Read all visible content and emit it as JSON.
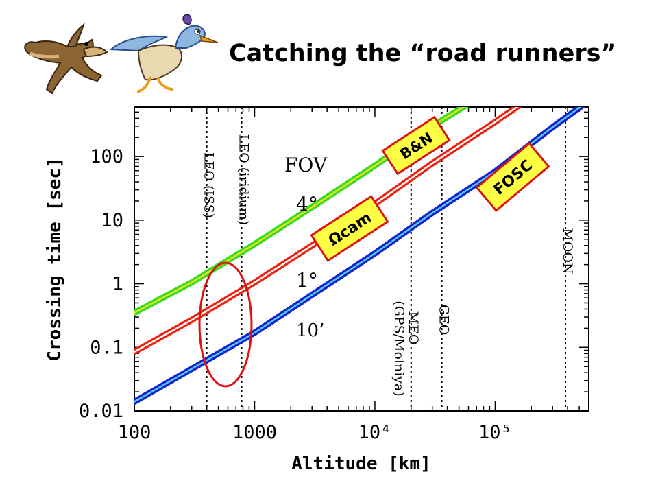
{
  "slide": {
    "title": "Catching the “road runners”"
  },
  "chart_data": {
    "type": "line",
    "xlabel": "Altitude [km]",
    "ylabel": "Crossing time [sec]",
    "xscale": "log",
    "yscale": "log",
    "xlim": [
      100,
      600000
    ],
    "ylim": [
      0.01,
      600
    ],
    "x_ticks": [
      {
        "value": 100,
        "label": "100"
      },
      {
        "value": 1000,
        "label": "1000"
      },
      {
        "value": 10000,
        "label": "10⁴"
      },
      {
        "value": 100000,
        "label": "10⁵"
      }
    ],
    "y_ticks": [
      {
        "value": 0.01,
        "label": "0.01"
      },
      {
        "value": 0.1,
        "label": "0.1"
      },
      {
        "value": 1,
        "label": "1"
      },
      {
        "value": 10,
        "label": "10"
      },
      {
        "value": 100,
        "label": "100"
      }
    ],
    "grid": false,
    "legend_title": "FOV",
    "series": [
      {
        "name": "4°",
        "color": "#33dd22",
        "core_color": "#f0e020",
        "x": [
          100,
          300,
          1000,
          3000,
          10000,
          30000,
          62000
        ],
        "y": [
          0.35,
          1.05,
          4.2,
          16,
          72,
          300,
          700
        ]
      },
      {
        "name": "1°",
        "color": "#ee2211",
        "core_color": "#ffffff",
        "x": [
          100,
          300,
          1000,
          3000,
          10000,
          30000,
          100000,
          180000
        ],
        "y": [
          0.085,
          0.27,
          1.05,
          4,
          18,
          78,
          350,
          750
        ]
      },
      {
        "name": "10’",
        "color": "#1122cc",
        "core_color": "#55ccee",
        "x": [
          100,
          300,
          1000,
          3000,
          10000,
          30000,
          100000,
          300000,
          570000
        ],
        "y": [
          0.014,
          0.046,
          0.17,
          0.67,
          3,
          13,
          58,
          290,
          700
        ]
      }
    ],
    "reference_lines": [
      {
        "x": 400,
        "label": "LEO (ISS)"
      },
      {
        "x": 780,
        "label": "LEO (iridium)"
      },
      {
        "x": 20000,
        "label": "MEO",
        "label2": "(GPS/Molniya)"
      },
      {
        "x": 36000,
        "label": "GEO"
      },
      {
        "x": 384000,
        "label": "MOON"
      }
    ],
    "instrument_labels": [
      "B&N",
      "Ωcam",
      "FOSC"
    ],
    "highlight": "red ellipse around the LEO altitude range"
  }
}
